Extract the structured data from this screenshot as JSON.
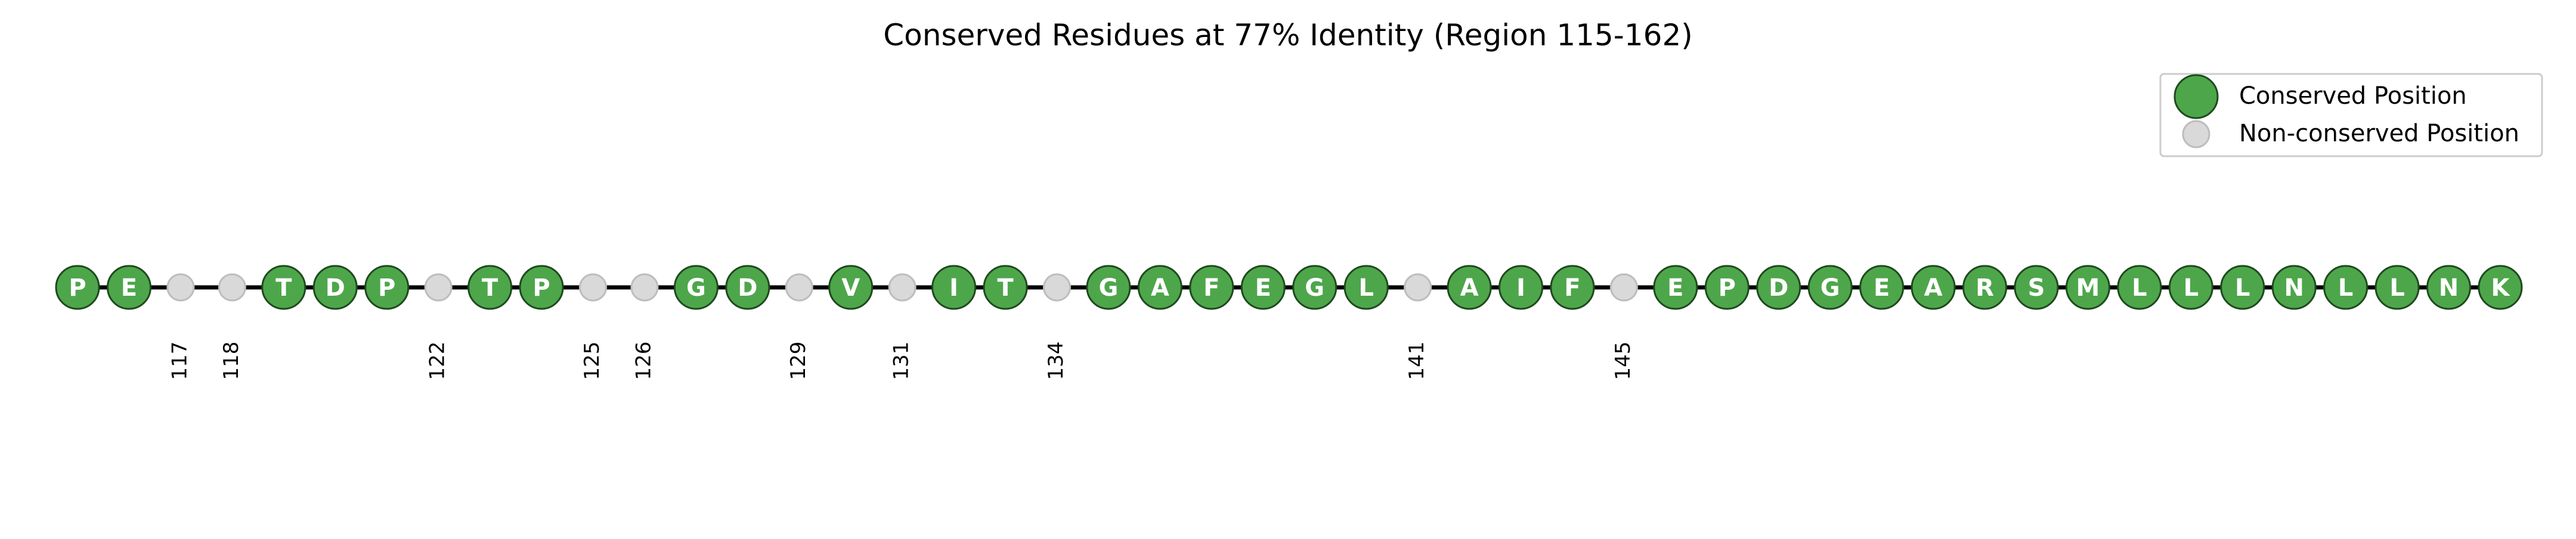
{
  "chart_data": {
    "type": "scatter",
    "title": "Conserved Residues at 77% Identity (Region 115-162)",
    "xlabel": "",
    "ylabel": "",
    "xlim": [
      115,
      162
    ],
    "legend_position": "top-right",
    "legend": [
      {
        "label": "Conserved Position",
        "kind": "conserved"
      },
      {
        "label": "Non-conserved Position",
        "kind": "nonconserved"
      }
    ],
    "colors": {
      "conserved_fill": "#4ea64b",
      "conserved_edge": "#1e4a1e",
      "nonconserved_fill": "#d9d9d9",
      "nonconserved_edge": "#bdbdbd",
      "baseline": "#000000",
      "residue_text": "#ffffff"
    },
    "positions": [
      {
        "pos": 115,
        "conserved": true,
        "residue": "P"
      },
      {
        "pos": 116,
        "conserved": true,
        "residue": "E"
      },
      {
        "pos": 117,
        "conserved": false,
        "label": "117"
      },
      {
        "pos": 118,
        "conserved": false,
        "label": "118"
      },
      {
        "pos": 119,
        "conserved": true,
        "residue": "T"
      },
      {
        "pos": 120,
        "conserved": true,
        "residue": "D"
      },
      {
        "pos": 121,
        "conserved": true,
        "residue": "P"
      },
      {
        "pos": 122,
        "conserved": false,
        "label": "122"
      },
      {
        "pos": 123,
        "conserved": true,
        "residue": "T"
      },
      {
        "pos": 124,
        "conserved": true,
        "residue": "P"
      },
      {
        "pos": 125,
        "conserved": false,
        "label": "125"
      },
      {
        "pos": 126,
        "conserved": false,
        "label": "126"
      },
      {
        "pos": 127,
        "conserved": true,
        "residue": "G"
      },
      {
        "pos": 128,
        "conserved": true,
        "residue": "D"
      },
      {
        "pos": 129,
        "conserved": false,
        "label": "129"
      },
      {
        "pos": 130,
        "conserved": true,
        "residue": "V"
      },
      {
        "pos": 131,
        "conserved": false,
        "label": "131"
      },
      {
        "pos": 132,
        "conserved": true,
        "residue": "I"
      },
      {
        "pos": 133,
        "conserved": true,
        "residue": "T"
      },
      {
        "pos": 134,
        "conserved": false,
        "label": "134"
      },
      {
        "pos": 135,
        "conserved": true,
        "residue": "G"
      },
      {
        "pos": 136,
        "conserved": true,
        "residue": "A"
      },
      {
        "pos": 137,
        "conserved": true,
        "residue": "F"
      },
      {
        "pos": 138,
        "conserved": true,
        "residue": "E"
      },
      {
        "pos": 139,
        "conserved": true,
        "residue": "G"
      },
      {
        "pos": 140,
        "conserved": true,
        "residue": "L"
      },
      {
        "pos": 141,
        "conserved": false,
        "label": "141"
      },
      {
        "pos": 142,
        "conserved": true,
        "residue": "A"
      },
      {
        "pos": 143,
        "conserved": true,
        "residue": "I"
      },
      {
        "pos": 144,
        "conserved": true,
        "residue": "F"
      },
      {
        "pos": 145,
        "conserved": false,
        "label": "145"
      },
      {
        "pos": 146,
        "conserved": true,
        "residue": "E"
      },
      {
        "pos": 147,
        "conserved": true,
        "residue": "P"
      },
      {
        "pos": 148,
        "conserved": true,
        "residue": "D"
      },
      {
        "pos": 149,
        "conserved": true,
        "residue": "G"
      },
      {
        "pos": 150,
        "conserved": true,
        "residue": "E"
      },
      {
        "pos": 151,
        "conserved": true,
        "residue": "A"
      },
      {
        "pos": 152,
        "conserved": true,
        "residue": "R"
      },
      {
        "pos": 153,
        "conserved": true,
        "residue": "S"
      },
      {
        "pos": 154,
        "conserved": true,
        "residue": "M"
      },
      {
        "pos": 155,
        "conserved": true,
        "residue": "L"
      },
      {
        "pos": 156,
        "conserved": true,
        "residue": "L"
      },
      {
        "pos": 157,
        "conserved": true,
        "residue": "L"
      },
      {
        "pos": 158,
        "conserved": true,
        "residue": "N"
      },
      {
        "pos": 159,
        "conserved": true,
        "residue": "L"
      },
      {
        "pos": 160,
        "conserved": true,
        "residue": "L"
      },
      {
        "pos": 161,
        "conserved": true,
        "residue": "N"
      },
      {
        "pos": 162,
        "conserved": true,
        "residue": "K"
      }
    ]
  }
}
